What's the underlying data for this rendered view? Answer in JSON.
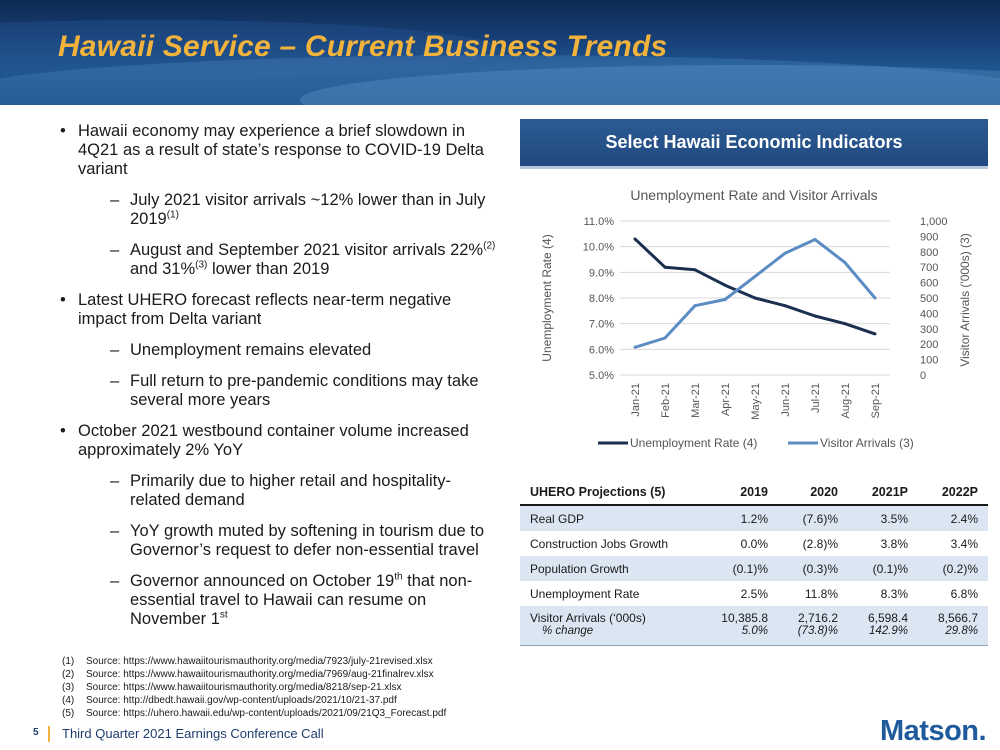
{
  "title": "Hawaii Service – Current Business Trends",
  "bullets": [
    {
      "level": 1,
      "text": "Hawaii economy may experience a brief slowdown in 4Q21 as a result of state’s response to COVID-19 Delta variant"
    },
    {
      "level": 2,
      "text": "July 2021 visitor arrivals ~12% lower than in July 2019",
      "sup": "(1)"
    },
    {
      "level": 2,
      "parts": [
        "August and September 2021 visitor arrivals 22%",
        "(2)",
        " and 31%",
        "(3)",
        " lower than 2019"
      ]
    },
    {
      "level": 1,
      "text": "Latest UHERO forecast reflects near-term negative impact from Delta variant"
    },
    {
      "level": 2,
      "text": "Unemployment remains elevated"
    },
    {
      "level": 2,
      "text": "Full return to pre-pandemic conditions may take several more years"
    },
    {
      "level": 1,
      "text": "October 2021 westbound container volume increased approximately 2% YoY"
    },
    {
      "level": 2,
      "text": "Primarily due to higher retail and hospitality-related demand"
    },
    {
      "level": 2,
      "text": "YoY growth muted by softening in tourism due to Governor’s request to defer non-essential travel"
    },
    {
      "level": 2,
      "parts": [
        "Governor announced on October 19",
        "th",
        " that non-essential travel to Hawaii can resume on November 1",
        "st",
        ""
      ]
    }
  ],
  "footnotes": [
    {
      "num": "(1)",
      "text": "Source: https://www.hawaiitourismauthority.org/media/7923/july-21revised.xlsx"
    },
    {
      "num": "(2)",
      "text": "Source: https://www.hawaiitourismauthority.org/media/7969/aug-21finalrev.xlsx"
    },
    {
      "num": "(3)",
      "text": "Source: https://www.hawaiitourismauthority.org/media/8218/sep-21.xlsx"
    },
    {
      "num": "(4)",
      "text": "Source: http://dbedt.hawaii.gov/wp-content/uploads/2021/10/21-37.pdf"
    },
    {
      "num": "(5)",
      "text": "Source: https://uhero.hawaii.edu/wp-content/uploads/2021/09/21Q3_Forecast.pdf"
    }
  ],
  "footer": {
    "page": "5",
    "text": "Third Quarter 2021 Earnings Conference Call",
    "logo": "Matson."
  },
  "panel": {
    "header": "Select Hawaii Economic Indicators"
  },
  "colors": {
    "title": "#f2b33d",
    "unemployment": "#1b2f4f",
    "visitors": "#5b8cc4",
    "panel": "#2d5a93",
    "shade": "#dce6f2"
  },
  "chart_data": {
    "type": "line",
    "title": "Unemployment Rate and Visitor Arrivals",
    "categories": [
      "Jan-21",
      "Feb-21",
      "Mar-21",
      "Apr-21",
      "May-21",
      "Jun-21",
      "Jul-21",
      "Aug-21",
      "Sep-21"
    ],
    "ylabel_left": "Unemployment Rate (4)",
    "ylabel_right": "Visitor Arrivals ('000s) (3)",
    "ylim_left": [
      5.0,
      11.0
    ],
    "ylim_right": [
      0,
      1000
    ],
    "yticks_left": [
      "5.0%",
      "6.0%",
      "7.0%",
      "8.0%",
      "9.0%",
      "10.0%",
      "11.0%"
    ],
    "yticks_right": [
      "0",
      "100",
      "200",
      "300",
      "400",
      "500",
      "600",
      "700",
      "800",
      "900",
      "1,000"
    ],
    "series": [
      {
        "name": "Unemployment Rate (4)",
        "axis": "left",
        "values": [
          10.3,
          9.2,
          9.1,
          8.5,
          8.0,
          7.7,
          7.3,
          7.0,
          6.6
        ]
      },
      {
        "name": "Visitor Arrivals (3)",
        "axis": "right",
        "values": [
          180,
          240,
          450,
          490,
          640,
          790,
          880,
          730,
          500
        ]
      }
    ],
    "grid": true,
    "legend": "bottom"
  },
  "table": {
    "header": [
      "UHERO Projections (5)",
      "2019",
      "2020",
      "2021P",
      "2022P"
    ],
    "rows": [
      {
        "label": "Real GDP",
        "values": [
          "1.2%",
          "(7.6)%",
          "3.5%",
          "2.4%"
        ],
        "shade": true
      },
      {
        "label": "Construction Jobs Growth",
        "values": [
          "0.0%",
          "(2.8)%",
          "3.8%",
          "3.4%"
        ],
        "shade": false
      },
      {
        "label": "Population Growth",
        "values": [
          "(0.1)%",
          "(0.3)%",
          "(0.1)%",
          "(0.2)%"
        ],
        "shade": true
      },
      {
        "label": "Unemployment Rate",
        "values": [
          "2.5%",
          "11.8%",
          "8.3%",
          "6.8%"
        ],
        "shade": false
      }
    ],
    "visitor_row": {
      "label": "Visitor Arrivals  (‘000s)",
      "sublabel": "% change",
      "values": [
        "10,385.8",
        "2,716.2",
        "6,598.4",
        "8,566.7"
      ],
      "subvalues": [
        "5.0%",
        "(73.8)%",
        "142.9%",
        "29.8%"
      ]
    }
  }
}
